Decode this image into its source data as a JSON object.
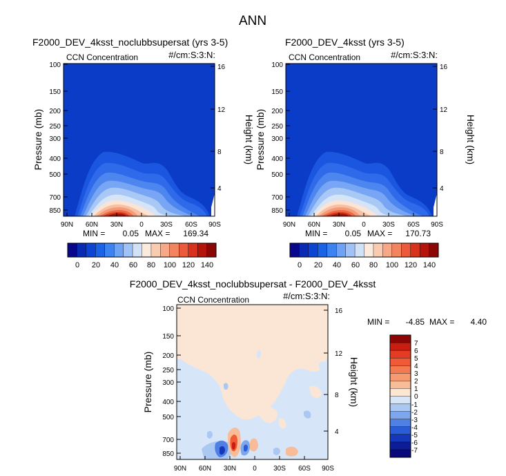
{
  "figure": {
    "title": "ANN",
    "colors": {
      "field_fill": "#0a3cc8",
      "diff_background": "#fbe6d6"
    }
  },
  "chart_data": [
    {
      "id": "panel-left",
      "type": "heatmap",
      "title": "F2000_DEV_4ksst_noclubbsupersat (yrs 3-5)",
      "left_label": "CCN Concentration",
      "right_label": "#/cm:S:3:N:",
      "ylabel": "Pressure (mb)",
      "ylabel_right": "Height (km)",
      "x_ticks": [
        "90N",
        "60N",
        "30N",
        "0",
        "30S",
        "60S",
        "90S"
      ],
      "y_ticks": [
        "100",
        "150",
        "200",
        "250",
        "300",
        "400",
        "500",
        "700",
        "850"
      ],
      "y_right_ticks": [
        "16",
        "12",
        "8",
        "4"
      ],
      "stats": {
        "min_label": "MIN =",
        "min": "0.05",
        "max_label": "MAX =",
        "max": "169.34"
      },
      "colorbar": {
        "tick_labels": [
          "0",
          "20",
          "40",
          "60",
          "80",
          "100",
          "120",
          "140"
        ],
        "colors": [
          "#08088c",
          "#0a2ab4",
          "#0c45d2",
          "#1a62e6",
          "#3c82f0",
          "#6ea2f4",
          "#a0c2f6",
          "#d2e2f6",
          "#fbeade",
          "#f9cbb0",
          "#f7a886",
          "#f38460",
          "#ec5a3c",
          "#d8321c",
          "#b4140a",
          "#8c0606"
        ]
      }
    },
    {
      "id": "panel-right",
      "type": "heatmap",
      "title": "F2000_DEV_4ksst (yrs 3-5)",
      "left_label": "CCN Concentration",
      "right_label": "#/cm:S:3:N:",
      "ylabel": "Pressure (mb)",
      "ylabel_right": "Height (km)",
      "x_ticks": [
        "90N",
        "60N",
        "30N",
        "0",
        "30S",
        "60S",
        "90S"
      ],
      "y_ticks": [
        "100",
        "150",
        "200",
        "250",
        "300",
        "400",
        "500",
        "700",
        "850"
      ],
      "y_right_ticks": [
        "16",
        "12",
        "8",
        "4"
      ],
      "stats": {
        "min_label": "MIN =",
        "min": "0.05",
        "max_label": "MAX =",
        "max": "170.73"
      },
      "colorbar": {
        "tick_labels": [
          "0",
          "20",
          "40",
          "60",
          "80",
          "100",
          "120",
          "140"
        ],
        "colors": [
          "#08088c",
          "#0a2ab4",
          "#0c45d2",
          "#1a62e6",
          "#3c82f0",
          "#6ea2f4",
          "#a0c2f6",
          "#d2e2f6",
          "#fbeade",
          "#f9cbb0",
          "#f7a886",
          "#f38460",
          "#ec5a3c",
          "#d8321c",
          "#b4140a",
          "#8c0606"
        ]
      }
    },
    {
      "id": "panel-diff",
      "type": "heatmap",
      "title": "F2000_DEV_4ksst_noclubbsupersat - F2000_DEV_4ksst",
      "left_label": "CCN Concentration",
      "right_label": "#/cm:S:3:N:",
      "ylabel": "Pressure (mb)",
      "ylabel_right": "Height (km)",
      "x_ticks": [
        "90N",
        "60N",
        "30N",
        "0",
        "30S",
        "60S",
        "90S"
      ],
      "y_ticks": [
        "100",
        "150",
        "200",
        "250",
        "300",
        "400",
        "500",
        "700",
        "850"
      ],
      "y_right_ticks": [
        "16",
        "12",
        "8",
        "4"
      ],
      "stats": {
        "min_label": "MIN =",
        "min": "-4.85",
        "max_label": "MAX =",
        "max": "4.40"
      },
      "colorbar": {
        "tick_labels": [
          "7",
          "6",
          "5",
          "4",
          "3",
          "2",
          "1",
          "0",
          "-1",
          "-2",
          "-3",
          "-4",
          "-5",
          "-6",
          "-7"
        ],
        "colors": [
          "#8c0606",
          "#c81e12",
          "#e43c24",
          "#f05a36",
          "#f47a52",
          "#f69a72",
          "#f8bc98",
          "#fde6d2",
          "#d6e6f8",
          "#aac8f2",
          "#7ea6ec",
          "#5080e4",
          "#2a5cd8",
          "#1438b8",
          "#0c1c96",
          "#08087a"
        ]
      }
    }
  ]
}
